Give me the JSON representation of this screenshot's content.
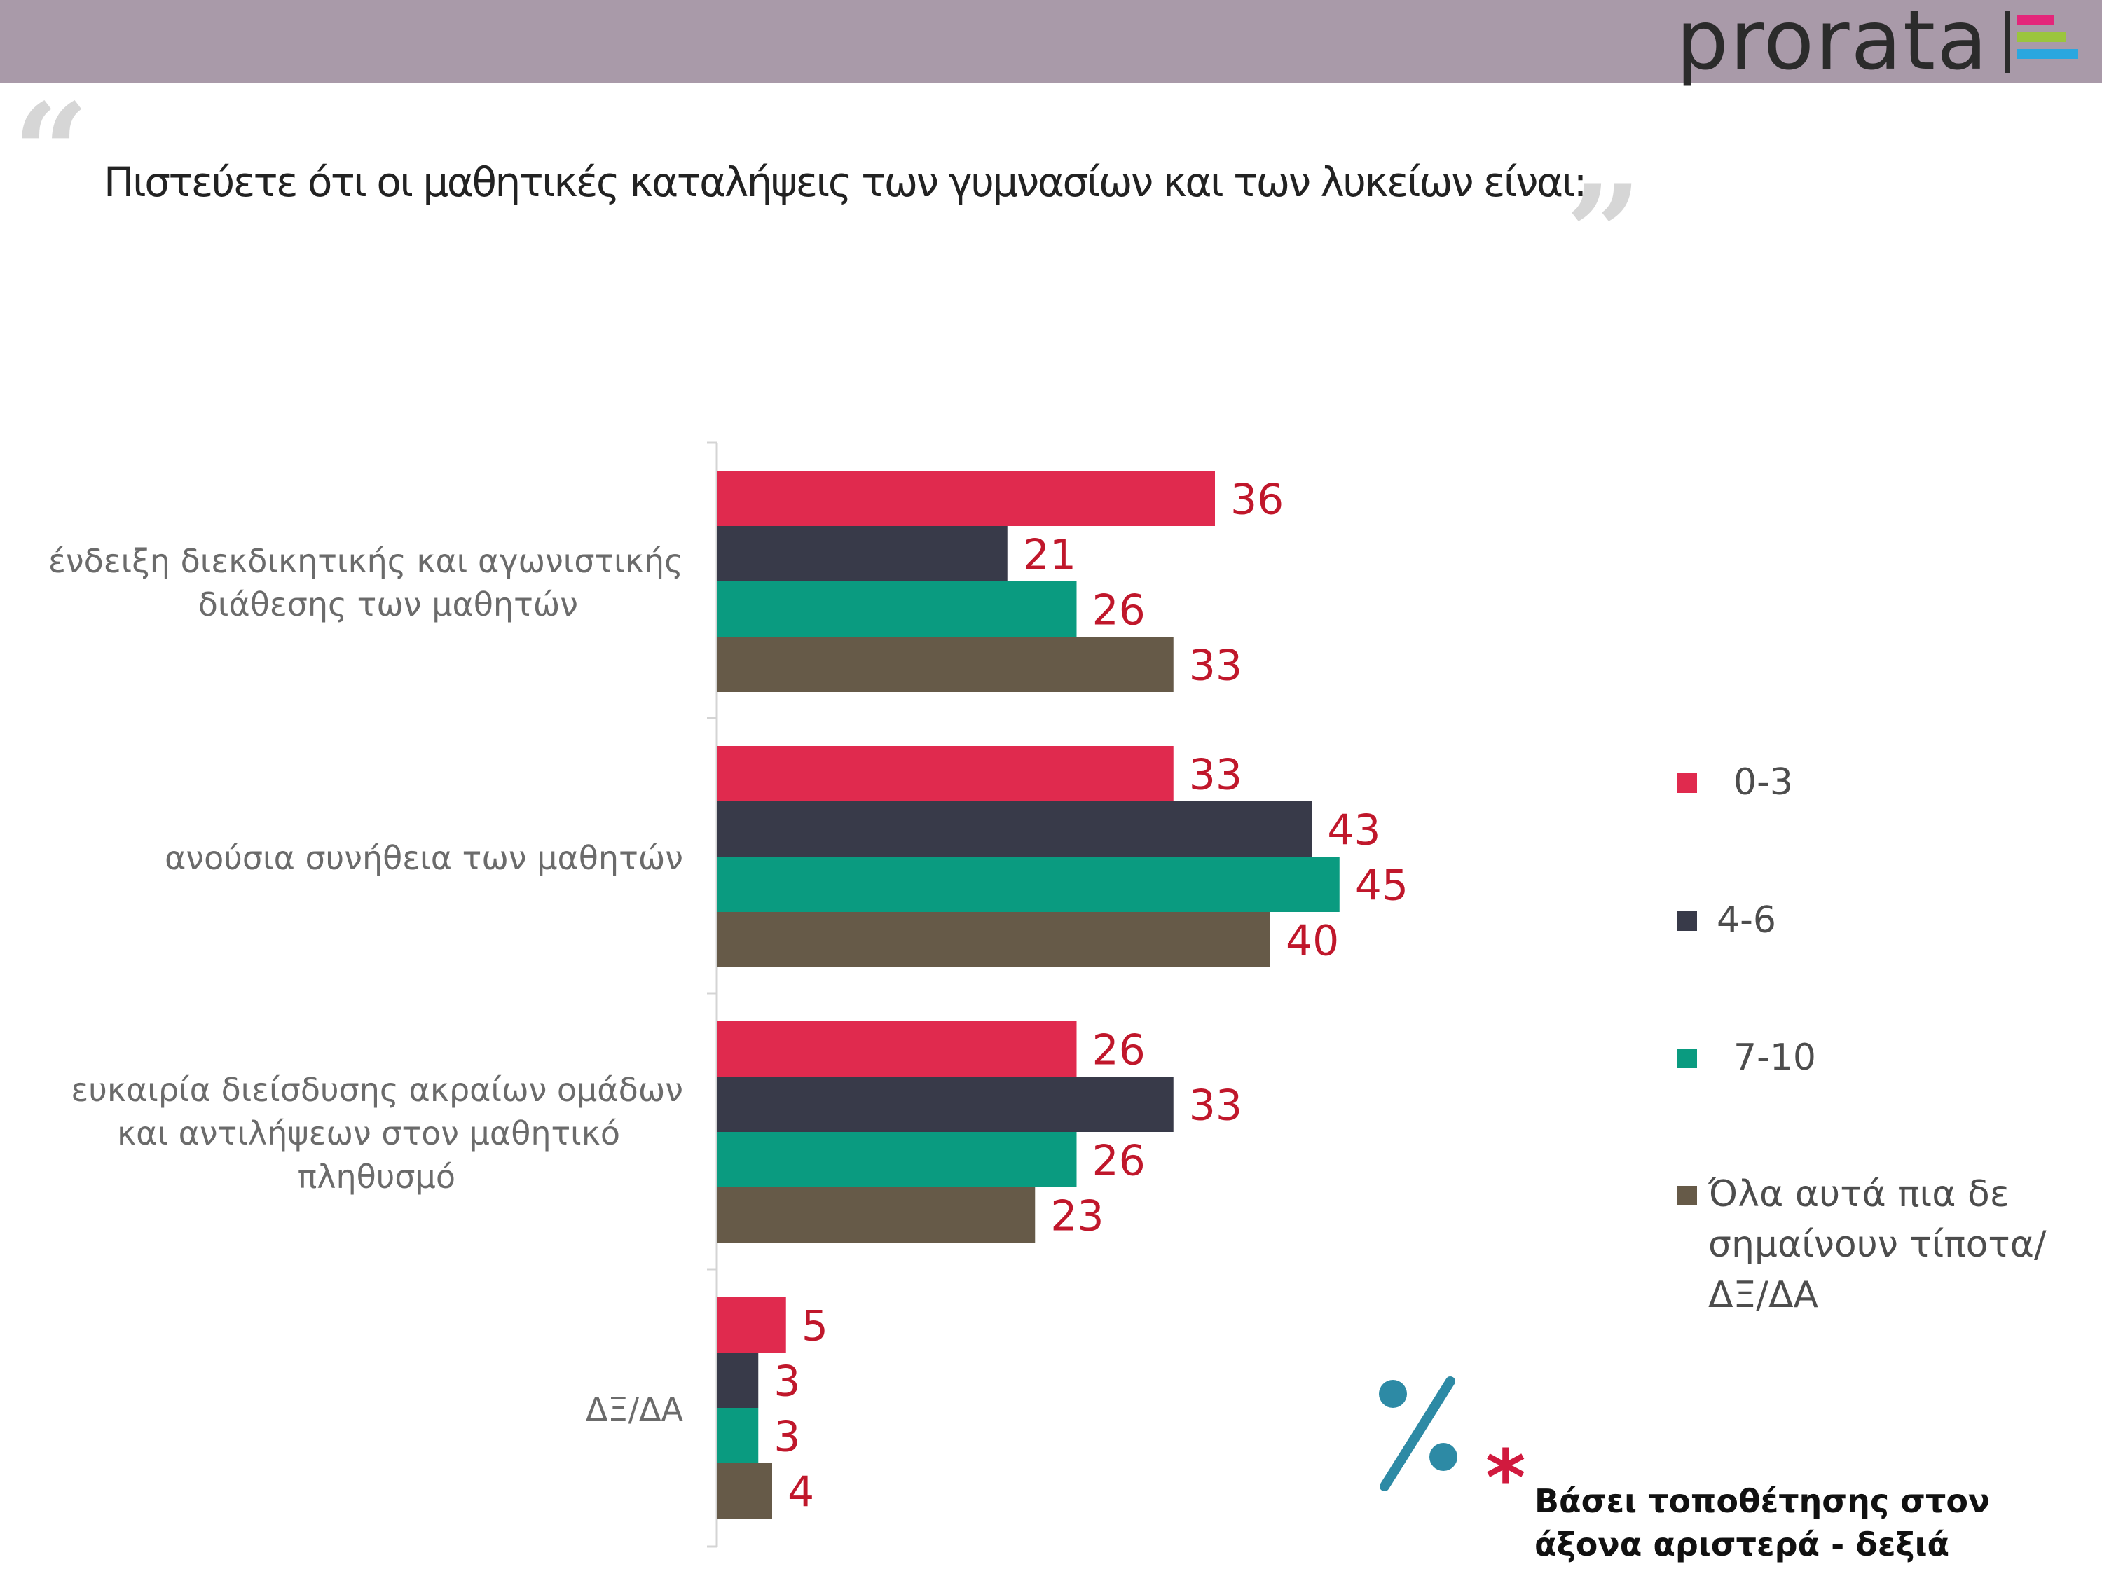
{
  "header": {
    "brand": "prorata",
    "brand_colors": [
      "#e3267a",
      "#9bc53d",
      "#2aa7df"
    ]
  },
  "title": "Πιστεύετε ότι οι μαθητικές καταλήψεις των γυμνασίων και των λυκείων είναι:",
  "quote_open": "“",
  "quote_close": "”",
  "legend": {
    "items": [
      {
        "label": "0-3",
        "color": "#e02a4e"
      },
      {
        "label": "4-6",
        "color": "#383a49"
      },
      {
        "label": "7-10",
        "color": "#0a9b80"
      },
      {
        "label": "Όλα αυτά πια δε σημαίνουν τίποτα/ΔΞ/ΔΑ",
        "color": "#665a48"
      }
    ]
  },
  "footnote": {
    "asterisk": "*",
    "text": "Βάσει τοποθέτησης στον άξονα αριστερά - δεξιά",
    "percent_icon_color": "#2d8aa5"
  },
  "chart_data": {
    "type": "bar",
    "orientation": "horizontal",
    "unit": "%",
    "xlim": [
      0,
      45
    ],
    "grid": false,
    "legend_position": "right",
    "categories": [
      [
        "ένδειξη διεκδικητικής και αγωνιστικής",
        "διάθεσης των μαθητών"
      ],
      [
        "ανούσια συνήθεια των μαθητών"
      ],
      [
        "ευκαιρία διείσδυσης ακραίων ομάδων",
        "και αντιλήψεων στον μαθητικό",
        "πληθυσμό"
      ],
      [
        "ΔΞ/ΔΑ"
      ]
    ],
    "series": [
      {
        "name": "0-3",
        "color": "#e02a4e",
        "values": [
          36,
          33,
          26,
          5
        ]
      },
      {
        "name": "4-6",
        "color": "#383a49",
        "values": [
          21,
          43,
          33,
          3
        ]
      },
      {
        "name": "7-10",
        "color": "#0a9b80",
        "values": [
          26,
          45,
          26,
          3
        ]
      },
      {
        "name": "Όλα αυτά πια δε σημαίνουν τίποτα/ΔΞ/ΔΑ",
        "color": "#665a48",
        "values": [
          33,
          40,
          23,
          4
        ]
      }
    ],
    "data_label_color": "#c0172b"
  }
}
